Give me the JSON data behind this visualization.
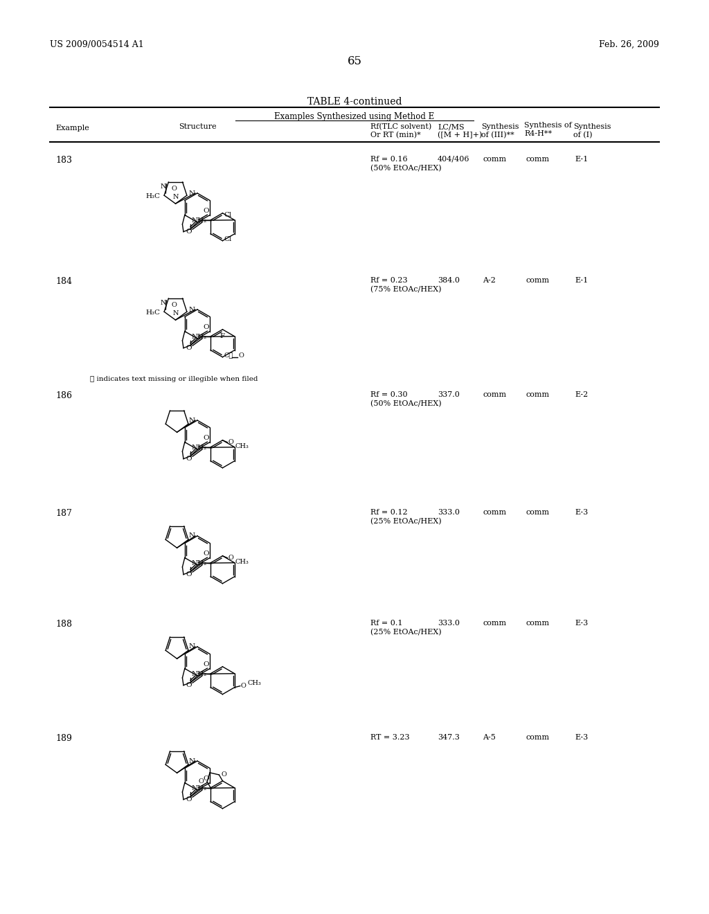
{
  "bg": "#ffffff",
  "header_left": "US 2009/0054514 A1",
  "header_right": "Feb. 26, 2009",
  "page_num": "65",
  "table_title": "TABLE 4-continued",
  "table_sub": "Examples Synthesized using Method E",
  "rows": [
    {
      "ex": "183",
      "rf": "Rf = 0.16\n(50% EtOAc/HEX)",
      "lcms": "404/406",
      "s3": "comm",
      "s4": "comm",
      "s1": "E-1"
    },
    {
      "ex": "184",
      "rf": "Rf = 0.23\n(75% EtOAc/HEX)",
      "lcms": "384.0",
      "s3": "A-2",
      "s4": "comm",
      "s1": "E-1"
    },
    {
      "ex": "186",
      "rf": "Rf = 0.30\n(50% EtOAc/HEX)",
      "lcms": "337.0",
      "s3": "comm",
      "s4": "comm",
      "s1": "E-2"
    },
    {
      "ex": "187",
      "rf": "Rf = 0.12\n(25% EtOAc/HEX)",
      "lcms": "333.0",
      "s3": "comm",
      "s4": "comm",
      "s1": "E-3"
    },
    {
      "ex": "188",
      "rf": "Rf = 0.1\n(25% EtOAc/HEX)",
      "lcms": "333.0",
      "s3": "comm",
      "s4": "comm",
      "s1": "E-3"
    },
    {
      "ex": "189",
      "rf": "RT = 3.23",
      "lcms": "347.3",
      "s3": "A-5",
      "s4": "comm",
      "s1": "E-3"
    }
  ]
}
